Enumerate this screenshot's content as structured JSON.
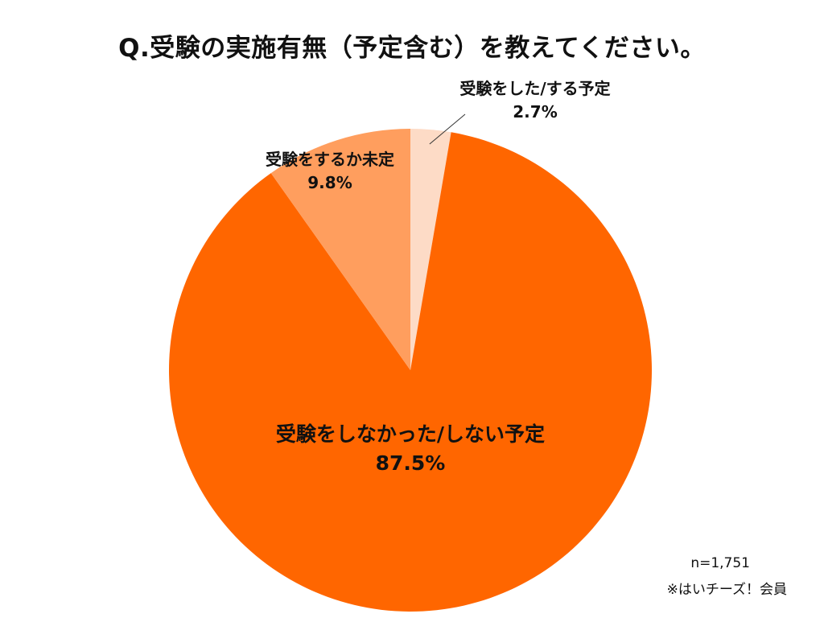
{
  "chart_data": {
    "type": "pie",
    "title": "Q.受験の実施有無（予定含む）を教えてください。",
    "slices": [
      {
        "label": "受験をした/する予定",
        "value": 2.7,
        "value_label": "2.7%",
        "color": "#FDDBC6"
      },
      {
        "label": "受験をしなかった/しない予定",
        "value": 87.5,
        "value_label": "87.5%",
        "color": "#FF6600"
      },
      {
        "label": "受験をするか未定",
        "value": 9.8,
        "value_label": "9.8%",
        "color": "#FF9E5E"
      }
    ],
    "start_angle": "12 o'clock",
    "direction": "clockwise",
    "legend": "none"
  },
  "footnote": {
    "n": "n=1,751",
    "source": "※はいチーズ！会員"
  }
}
